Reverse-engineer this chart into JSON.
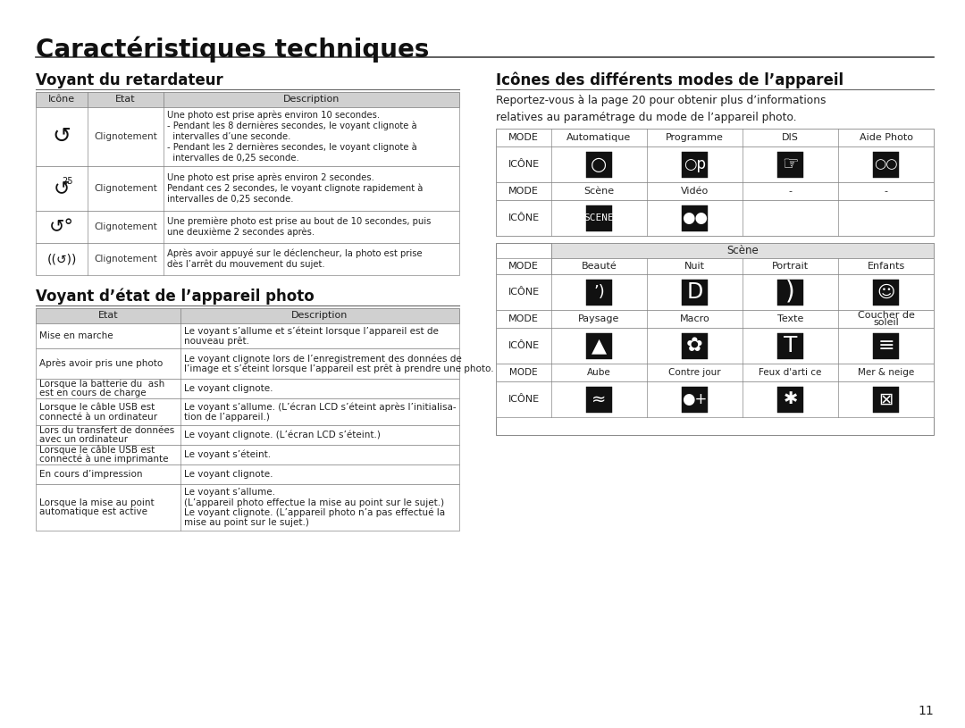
{
  "title": "Caractéristiques techniques",
  "bg_color": "#ffffff",
  "text_color": "#000000",
  "header_bg": "#d0d0d0",
  "section1_title": "Voyant du retardateur",
  "section2_title": "Voyant d’état de l’appareil photo",
  "section3_title": "Icônes des différents modes de l’appareil",
  "section3_subtitle": "Reportez-vous à la page 20 pour obtenir plus d’informations\nrelatives au paramétrage du mode de l’appareil photo.",
  "page_number": "11",
  "timer_rows": [
    {
      "etat": "Clignotement",
      "desc": "Une photo est prise après environ 10 secondes.\n- Pendant les 8 dernières secondes, le voyant clignote à\n  intervalles d’une seconde.\n- Pendant les 2 dernières secondes, le voyant clignote à\n  intervalles de 0,25 seconde."
    },
    {
      "etat": "Clignotement",
      "desc": "Une photo est prise après environ 2 secondes.\nPendant ces 2 secondes, le voyant clignote rapidement à\nintervalles de 0,25 seconde."
    },
    {
      "etat": "Clignotement",
      "desc": "Une première photo est prise au bout de 10 secondes, puis\nune deuxième 2 secondes après."
    },
    {
      "etat": "Clignotement",
      "desc": "Après avoir appuyé sur le déclencheur, la photo est prise\ndès l’arrêt du mouvement du sujet."
    }
  ],
  "state_rows": [
    [
      "Mise en marche",
      "Le voyant s’allume et s’éteint lorsque l’appareil est de\nnouveau prêt."
    ],
    [
      "Après avoir pris une photo",
      "Le voyant clignote lors de l’enregistrement des données de\nl’image et s’éteint lorsque l’appareil est prêt à prendre une photo."
    ],
    [
      "Lorsque la batterie du  ash\nest en cours de charge",
      "Le voyant clignote."
    ],
    [
      "Lorsque le câble USB est\nconnecté à un ordinateur",
      "Le voyant s’allume. (L’écran LCD s’éteint après l’initialisa-\ntion de l’appareil.)"
    ],
    [
      "Lors du transfert de données\navec un ordinateur",
      "Le voyant clignote. (L’écran LCD s’éteint.)"
    ],
    [
      "Lorsque le câble USB est\nconnecté à une imprimante",
      "Le voyant s’éteint."
    ],
    [
      "En cours d’impression",
      "Le voyant clignote."
    ],
    [
      "Lorsque la mise au point\nautomatique est active",
      "Le voyant s’allume.\n(L’appareil photo effectue la mise au point sur le sujet.)\nLe voyant clignote. (L’appareil photo n’a pas effectué la\nmise au point sur le sujet.)"
    ]
  ]
}
